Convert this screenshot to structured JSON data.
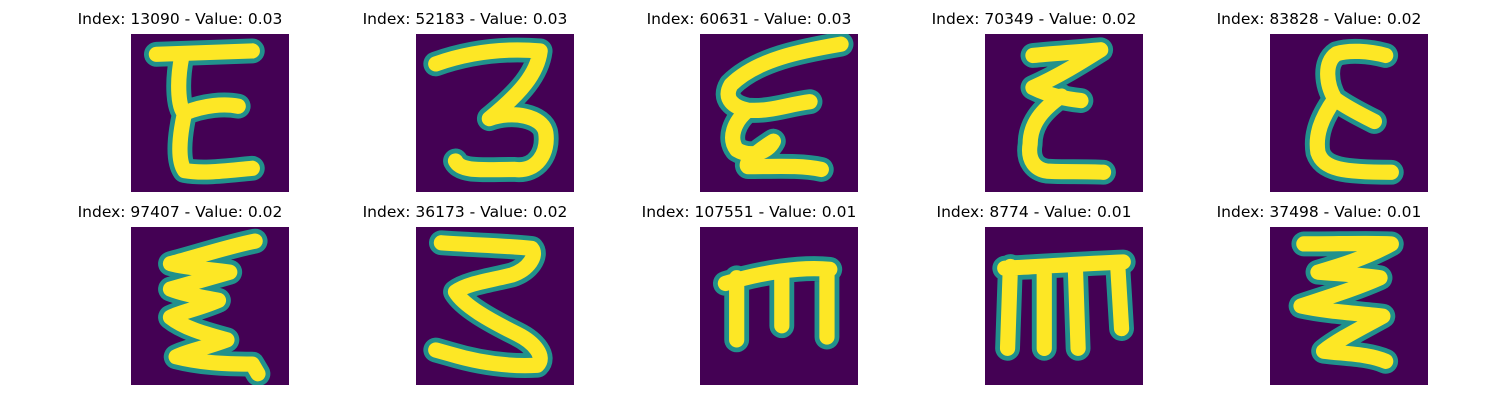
{
  "chart_data": {
    "type": "image_grid",
    "rows": 2,
    "cols": 5,
    "colormap": "viridis",
    "colors": {
      "background": "#440154",
      "stroke": "#fde725",
      "edge": "#21918c"
    },
    "panels": [
      {
        "title": "Index: 13090 - Value: 0.03",
        "index": 13090,
        "value": 0.03,
        "glyph": "E"
      },
      {
        "title": "Index: 52183 - Value: 0.03",
        "index": 52183,
        "value": 0.03,
        "glyph": "3"
      },
      {
        "title": "Index: 60631 - Value: 0.03",
        "index": 60631,
        "value": 0.03,
        "glyph": "epsilon"
      },
      {
        "title": "Index: 70349 - Value: 0.02",
        "index": 70349,
        "value": 0.02,
        "glyph": "E"
      },
      {
        "title": "Index: 83828 - Value: 0.02",
        "index": 83828,
        "value": 0.02,
        "glyph": "E"
      },
      {
        "title": "Index: 97407 - Value: 0.02",
        "index": 97407,
        "value": 0.02,
        "glyph": "epsilon"
      },
      {
        "title": "Index: 36173 - Value: 0.02",
        "index": 36173,
        "value": 0.02,
        "glyph": "3"
      },
      {
        "title": "Index: 107551 - Value: 0.01",
        "index": 107551,
        "value": 0.01,
        "glyph": "m"
      },
      {
        "title": "Index: 8774 - Value: 0.01",
        "index": 8774,
        "value": 0.01,
        "glyph": "m"
      },
      {
        "title": "Index: 37498 - Value: 0.01",
        "index": 37498,
        "value": 0.01,
        "glyph": "3"
      }
    ]
  }
}
